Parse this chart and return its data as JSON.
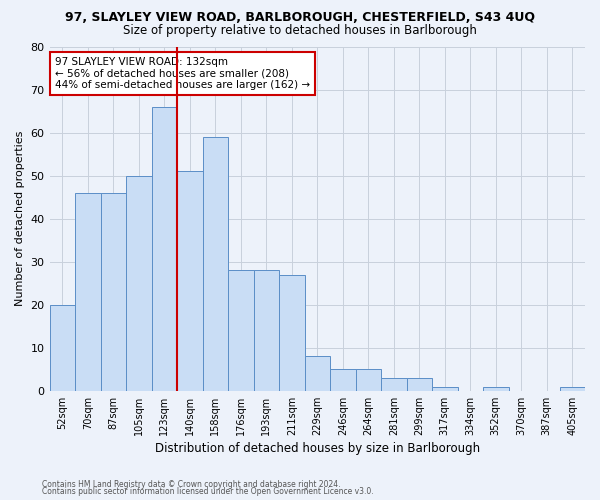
{
  "title": "97, SLAYLEY VIEW ROAD, BARLBOROUGH, CHESTERFIELD, S43 4UQ",
  "subtitle": "Size of property relative to detached houses in Barlborough",
  "xlabel": "Distribution of detached houses by size in Barlborough",
  "ylabel": "Number of detached properties",
  "categories": [
    "52sqm",
    "70sqm",
    "87sqm",
    "105sqm",
    "123sqm",
    "140sqm",
    "158sqm",
    "176sqm",
    "193sqm",
    "211sqm",
    "229sqm",
    "246sqm",
    "264sqm",
    "281sqm",
    "299sqm",
    "317sqm",
    "334sqm",
    "352sqm",
    "370sqm",
    "387sqm",
    "405sqm"
  ],
  "values": [
    20,
    46,
    46,
    50,
    66,
    51,
    59,
    28,
    28,
    27,
    8,
    5,
    5,
    3,
    3,
    1,
    0,
    1,
    0,
    0,
    1
  ],
  "bar_color": "#c9ddf5",
  "bar_edge_color": "#5b8ec7",
  "vline_color": "#cc0000",
  "vline_index": 4.5,
  "annotation_text": "97 SLAYLEY VIEW ROAD: 132sqm\n← 56% of detached houses are smaller (208)\n44% of semi-detached houses are larger (162) →",
  "annotation_box_color": "#ffffff",
  "annotation_box_edge": "#cc0000",
  "ylim": [
    0,
    80
  ],
  "yticks": [
    0,
    10,
    20,
    30,
    40,
    50,
    60,
    70,
    80
  ],
  "grid_color": "#c8d0dc",
  "background_color": "#edf2fa",
  "footer1": "Contains HM Land Registry data © Crown copyright and database right 2024.",
  "footer2": "Contains public sector information licensed under the Open Government Licence v3.0."
}
